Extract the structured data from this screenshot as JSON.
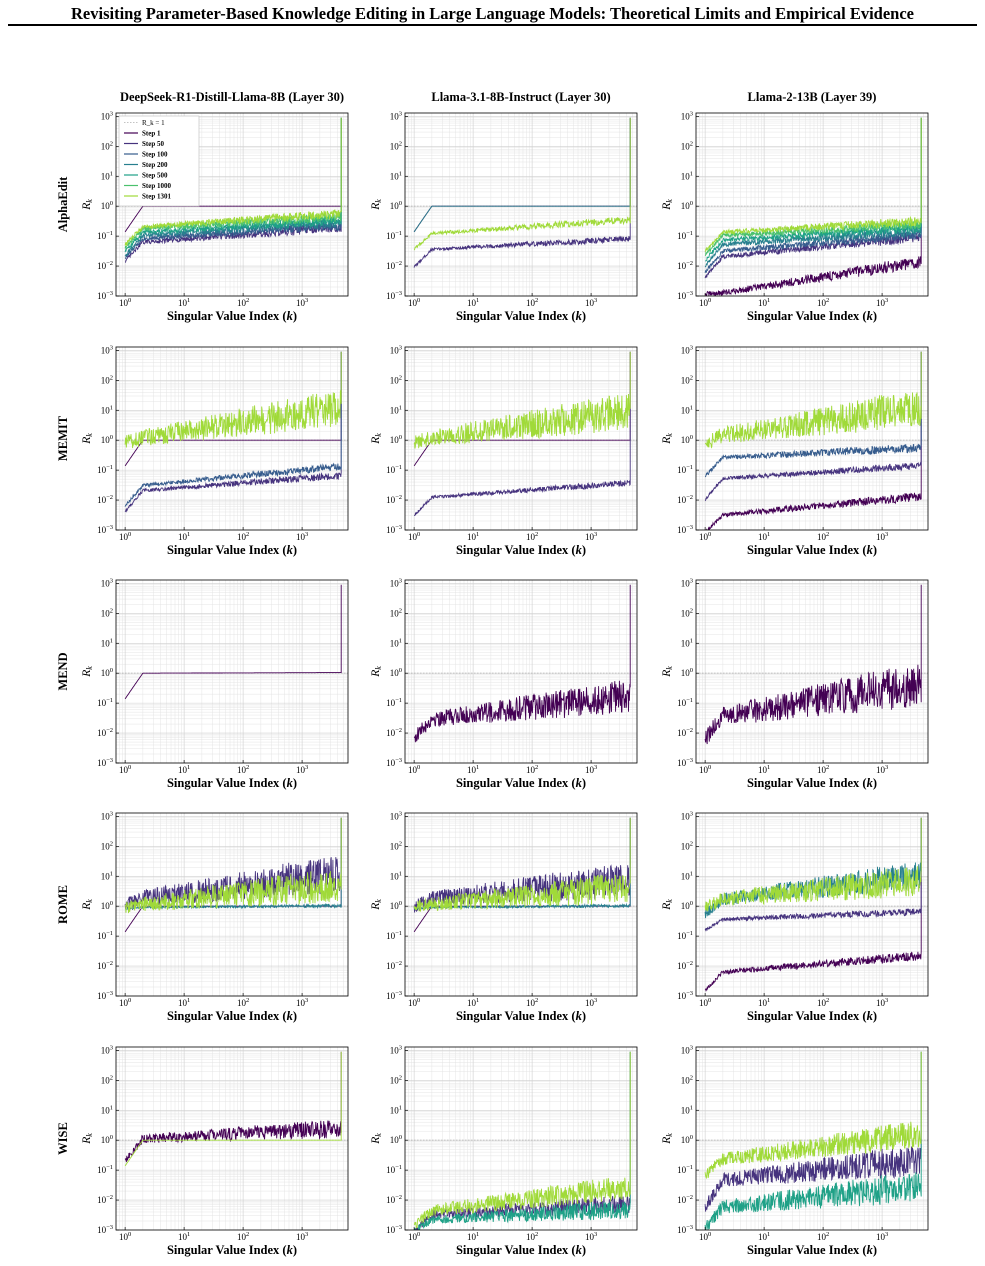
{
  "page": {
    "title": "Revisiting Parameter-Based Knowledge Editing in Large Language Models: Theoretical Limits and Empirical Evidence"
  },
  "figure": {
    "columns": [
      "DeepSeek-R1-Distill-Llama-8B (Layer 30)",
      "Llama-3.1-8B-Instruct (Layer 30)",
      "Llama-2-13B (Layer 39)"
    ],
    "rows": [
      "AlphaEdit",
      "MEMIT",
      "MEND",
      "ROME",
      "WISE"
    ],
    "xlabel": "Singular Value Index (k)",
    "ylabel": "R_k",
    "x_ticks": [
      "10^0",
      "10^1",
      "10^2",
      "10^3"
    ],
    "y_ticks": [
      "10^-3",
      "10^-2",
      "10^-1",
      "10^0",
      "10^1",
      "10^2",
      "10^3"
    ],
    "legend": {
      "location": "upper-left",
      "reference_line": "R_k = 1",
      "entries": [
        "Step 1",
        "Step 50",
        "Step 100",
        "Step 200",
        "Step 500",
        "Step 1000",
        "Step 1301"
      ]
    },
    "colors": {
      "step_1": "#440154",
      "step_50": "#46337e",
      "step_100": "#365c8d",
      "step_200": "#277f8e",
      "step_500": "#1fa187",
      "step_1000": "#4ac16d",
      "step_1301": "#a0da39",
      "reference_line": "#b0b0b0"
    }
  },
  "chart_data": [
    {
      "type": "line",
      "row": "AlphaEdit",
      "column": "DeepSeek-R1-Distill-Llama-8B (Layer 30)",
      "xscale": "log",
      "yscale": "log",
      "xlim": [
        0.7,
        6000
      ],
      "ylim": [
        0.001,
        1300
      ],
      "grid": true,
      "series": [
        {
          "name": "Step 1",
          "start": 0.14,
          "plateau": 1.0,
          "end": 1.0,
          "noise": 0.0,
          "spike": 900
        },
        {
          "name": "Step 50",
          "start": 0.014,
          "plateau": 0.06,
          "end": 0.17,
          "noise": 0.15,
          "spike": 900
        },
        {
          "name": "Step 100",
          "start": 0.018,
          "plateau": 0.08,
          "end": 0.2,
          "noise": 0.15,
          "spike": 900
        },
        {
          "name": "Step 200",
          "start": 0.022,
          "plateau": 0.1,
          "end": 0.25,
          "noise": 0.15,
          "spike": 900
        },
        {
          "name": "Step 500",
          "start": 0.03,
          "plateau": 0.13,
          "end": 0.3,
          "noise": 0.15,
          "spike": 900
        },
        {
          "name": "Step 1000",
          "start": 0.04,
          "plateau": 0.17,
          "end": 0.4,
          "noise": 0.15,
          "spike": 900
        },
        {
          "name": "Step 1301",
          "start": 0.05,
          "plateau": 0.2,
          "end": 0.5,
          "noise": 0.15,
          "spike": 900
        }
      ]
    },
    {
      "type": "line",
      "row": "AlphaEdit",
      "column": "Llama-3.1-8B-Instruct (Layer 30)",
      "xscale": "log",
      "yscale": "log",
      "xlim": [
        0.7,
        6000
      ],
      "ylim": [
        0.001,
        1300
      ],
      "grid": true,
      "series": [
        {
          "name": "Step 1",
          "start": 0.14,
          "plateau": 1.0,
          "end": 1.0,
          "noise": 0.0,
          "spike": 900
        },
        {
          "name": "Step 50",
          "start": 0.009,
          "plateau": 0.035,
          "end": 0.075,
          "noise": 0.1,
          "spike": 900
        },
        {
          "name": "Step 200",
          "start": 0.14,
          "plateau": 1.0,
          "end": 1.0,
          "noise": 0.0,
          "spike": 900
        },
        {
          "name": "Step 1301",
          "start": 0.035,
          "plateau": 0.12,
          "end": 0.32,
          "noise": 0.12,
          "spike": 900
        }
      ]
    },
    {
      "type": "line",
      "row": "AlphaEdit",
      "column": "Llama-2-13B (Layer 39)",
      "xscale": "log",
      "yscale": "log",
      "xlim": [
        0.7,
        6000
      ],
      "ylim": [
        0.001,
        1300
      ],
      "grid": true,
      "series": [
        {
          "name": "Step 1",
          "start": 0.0011,
          "plateau": 0.0012,
          "end": 0.012,
          "noise": 0.2,
          "spike": 900
        },
        {
          "name": "Step 50",
          "start": 0.004,
          "plateau": 0.02,
          "end": 0.08,
          "noise": 0.15,
          "spike": 900
        },
        {
          "name": "Step 100",
          "start": 0.006,
          "plateau": 0.03,
          "end": 0.1,
          "noise": 0.15,
          "spike": 900
        },
        {
          "name": "Step 200",
          "start": 0.01,
          "plateau": 0.05,
          "end": 0.13,
          "noise": 0.15,
          "spike": 900
        },
        {
          "name": "Step 500",
          "start": 0.015,
          "plateau": 0.07,
          "end": 0.17,
          "noise": 0.15,
          "spike": 900
        },
        {
          "name": "Step 1000",
          "start": 0.022,
          "plateau": 0.1,
          "end": 0.22,
          "noise": 0.15,
          "spike": 900
        },
        {
          "name": "Step 1301",
          "start": 0.03,
          "plateau": 0.13,
          "end": 0.28,
          "noise": 0.15,
          "spike": 900
        }
      ]
    },
    {
      "type": "line",
      "row": "MEMIT",
      "column": "DeepSeek-R1-Distill-Llama-8B (Layer 30)",
      "xscale": "log",
      "yscale": "log",
      "xlim": [
        0.7,
        6000
      ],
      "ylim": [
        0.001,
        1300
      ],
      "grid": true,
      "series": [
        {
          "name": "Step 1",
          "start": 0.14,
          "plateau": 1.0,
          "end": 1.0,
          "noise": 0.0,
          "spike": 900
        },
        {
          "name": "Step 50",
          "start": 0.004,
          "plateau": 0.02,
          "end": 0.06,
          "noise": 0.12,
          "spike": 900
        },
        {
          "name": "Step 100",
          "start": 0.006,
          "plateau": 0.03,
          "end": 0.12,
          "noise": 0.12,
          "spike": 900
        },
        {
          "name": "Step 1301",
          "start": 0.7,
          "plateau": 1.0,
          "end": 8.0,
          "noise": 0.6,
          "spike": 900
        }
      ]
    },
    {
      "type": "line",
      "row": "MEMIT",
      "column": "Llama-3.1-8B-Instruct (Layer 30)",
      "xscale": "log",
      "yscale": "log",
      "xlim": [
        0.7,
        6000
      ],
      "ylim": [
        0.001,
        1300
      ],
      "grid": true,
      "series": [
        {
          "name": "Step 1",
          "start": 0.14,
          "plateau": 1.0,
          "end": 1.0,
          "noise": 0.0,
          "spike": 900
        },
        {
          "name": "Step 50",
          "start": 0.003,
          "plateau": 0.012,
          "end": 0.035,
          "noise": 0.1,
          "spike": 900
        },
        {
          "name": "Step 1301",
          "start": 0.7,
          "plateau": 1.0,
          "end": 6.0,
          "noise": 0.6,
          "spike": 900
        }
      ]
    },
    {
      "type": "line",
      "row": "MEMIT",
      "column": "Llama-2-13B (Layer 39)",
      "xscale": "log",
      "yscale": "log",
      "xlim": [
        0.7,
        6000
      ],
      "ylim": [
        0.001,
        1300
      ],
      "grid": true,
      "series": [
        {
          "name": "Step 1",
          "start": 0.0008,
          "plateau": 0.003,
          "end": 0.012,
          "noise": 0.15,
          "spike": 900
        },
        {
          "name": "Step 50",
          "start": 0.01,
          "plateau": 0.05,
          "end": 0.13,
          "noise": 0.12,
          "spike": 900
        },
        {
          "name": "Step 100",
          "start": 0.06,
          "plateau": 0.25,
          "end": 0.5,
          "noise": 0.15,
          "spike": 900
        },
        {
          "name": "Step 1301",
          "start": 0.7,
          "plateau": 1.2,
          "end": 8.0,
          "noise": 0.6,
          "spike": 900
        }
      ]
    },
    {
      "type": "line",
      "row": "MEND",
      "column": "DeepSeek-R1-Distill-Llama-8B (Layer 30)",
      "xscale": "log",
      "yscale": "log",
      "xlim": [
        0.7,
        6000
      ],
      "ylim": [
        0.001,
        1300
      ],
      "grid": true,
      "series": [
        {
          "name": "Step 1",
          "start": 0.14,
          "plateau": 1.0,
          "end": 1.05,
          "noise": 0.0,
          "spike": 900
        }
      ]
    },
    {
      "type": "line",
      "row": "MEND",
      "column": "Llama-3.1-8B-Instruct (Layer 30)",
      "xscale": "log",
      "yscale": "log",
      "xlim": [
        0.7,
        6000
      ],
      "ylim": [
        0.001,
        1300
      ],
      "grid": true,
      "series": [
        {
          "name": "Step 1",
          "start": 0.006,
          "plateau": 0.025,
          "end": 0.12,
          "noise": 0.55,
          "spike": 900
        }
      ]
    },
    {
      "type": "line",
      "row": "MEND",
      "column": "Llama-2-13B (Layer 39)",
      "xscale": "log",
      "yscale": "log",
      "xlim": [
        0.7,
        6000
      ],
      "ylim": [
        0.001,
        1300
      ],
      "grid": true,
      "series": [
        {
          "name": "Step 1",
          "start": 0.005,
          "plateau": 0.03,
          "end": 0.25,
          "noise": 0.7,
          "spike": 900
        }
      ]
    },
    {
      "type": "line",
      "row": "ROME",
      "column": "DeepSeek-R1-Distill-Llama-8B (Layer 30)",
      "xscale": "log",
      "yscale": "log",
      "xlim": [
        0.7,
        6000
      ],
      "ylim": [
        0.001,
        1300
      ],
      "grid": true,
      "series": [
        {
          "name": "Step 1",
          "start": 0.14,
          "plateau": 1.0,
          "end": 1.0,
          "noise": 0.0,
          "spike": 900
        },
        {
          "name": "Step 50",
          "start": 0.9,
          "plateau": 1.5,
          "end": 8.0,
          "noise": 0.6,
          "spike": 900
        },
        {
          "name": "Step 200",
          "start": 0.8,
          "plateau": 0.9,
          "end": 1.0,
          "noise": 0.05,
          "spike": 900
        },
        {
          "name": "Step 1301",
          "start": 0.8,
          "plateau": 1.0,
          "end": 3.5,
          "noise": 0.55,
          "spike": 900
        }
      ]
    },
    {
      "type": "line",
      "row": "ROME",
      "column": "Llama-3.1-8B-Instruct (Layer 30)",
      "xscale": "log",
      "yscale": "log",
      "xlim": [
        0.7,
        6000
      ],
      "ylim": [
        0.001,
        1300
      ],
      "grid": true,
      "series": [
        {
          "name": "Step 1",
          "start": 0.14,
          "plateau": 1.0,
          "end": 1.0,
          "noise": 0.0,
          "spike": 900
        },
        {
          "name": "Step 50",
          "start": 0.8,
          "plateau": 1.5,
          "end": 5.0,
          "noise": 0.55,
          "spike": 900
        },
        {
          "name": "Step 200",
          "start": 0.8,
          "plateau": 0.9,
          "end": 1.0,
          "noise": 0.05,
          "spike": 900
        },
        {
          "name": "Step 1301",
          "start": 0.8,
          "plateau": 1.0,
          "end": 3.0,
          "noise": 0.5,
          "spike": 900
        }
      ]
    },
    {
      "type": "line",
      "row": "ROME",
      "column": "Llama-2-13B (Layer 39)",
      "xscale": "log",
      "yscale": "log",
      "xlim": [
        0.7,
        6000
      ],
      "ylim": [
        0.001,
        1300
      ],
      "grid": true,
      "series": [
        {
          "name": "Step 1",
          "start": 0.0015,
          "plateau": 0.006,
          "end": 0.02,
          "noise": 0.15,
          "spike": 900
        },
        {
          "name": "Step 50",
          "start": 0.15,
          "plateau": 0.35,
          "end": 0.6,
          "noise": 0.12,
          "spike": 900
        },
        {
          "name": "Step 200",
          "start": 0.5,
          "plateau": 1.5,
          "end": 8.0,
          "noise": 0.45,
          "spike": 900
        },
        {
          "name": "Step 1301",
          "start": 0.8,
          "plateau": 1.5,
          "end": 5.0,
          "noise": 0.5,
          "spike": 900
        }
      ]
    },
    {
      "type": "line",
      "row": "WISE",
      "column": "DeepSeek-R1-Distill-Llama-8B (Layer 30)",
      "xscale": "log",
      "yscale": "log",
      "xlim": [
        0.7,
        6000
      ],
      "ylim": [
        0.001,
        1300
      ],
      "grid": true,
      "series": [
        {
          "name": "Step 1",
          "start": 0.2,
          "plateau": 1.0,
          "end": 2.0,
          "noise": 0.3,
          "spike": 900
        },
        {
          "name": "Step 1301",
          "start": 0.14,
          "plateau": 1.0,
          "end": 1.0,
          "noise": 0.0,
          "spike": 900
        }
      ]
    },
    {
      "type": "line",
      "row": "WISE",
      "column": "Llama-3.1-8B-Instruct (Layer 30)",
      "xscale": "log",
      "yscale": "log",
      "xlim": [
        0.7,
        6000
      ],
      "ylim": [
        0.001,
        1300
      ],
      "grid": true,
      "series": [
        {
          "name": "Step 50",
          "start": 0.0008,
          "plateau": 0.003,
          "end": 0.006,
          "noise": 0.3,
          "spike": 900
        },
        {
          "name": "Step 500",
          "start": 0.0008,
          "plateau": 0.002,
          "end": 0.004,
          "noise": 0.3,
          "spike": 900
        },
        {
          "name": "Step 1301",
          "start": 0.0012,
          "plateau": 0.004,
          "end": 0.02,
          "noise": 0.4,
          "spike": 900
        }
      ]
    },
    {
      "type": "line",
      "row": "WISE",
      "column": "Llama-2-13B (Layer 39)",
      "xscale": "log",
      "yscale": "log",
      "xlim": [
        0.7,
        6000
      ],
      "ylim": [
        0.001,
        1300
      ],
      "grid": true,
      "series": [
        {
          "name": "Step 50",
          "start": 0.005,
          "plateau": 0.04,
          "end": 0.15,
          "noise": 0.5,
          "spike": 900
        },
        {
          "name": "Step 500",
          "start": 0.001,
          "plateau": 0.005,
          "end": 0.02,
          "noise": 0.5,
          "spike": 900
        },
        {
          "name": "Step 1301",
          "start": 0.06,
          "plateau": 0.2,
          "end": 1.2,
          "noise": 0.45,
          "spike": 900
        }
      ]
    }
  ]
}
